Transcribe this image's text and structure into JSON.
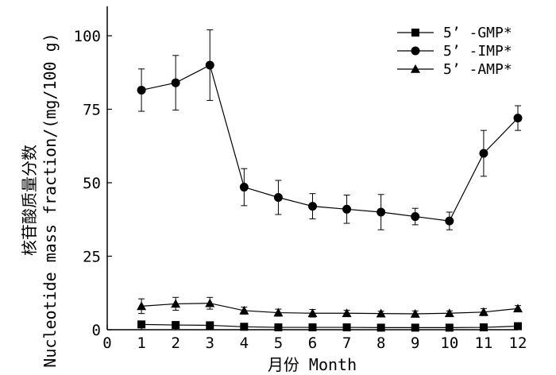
{
  "chart_data": {
    "type": "line",
    "title": "",
    "xlabel": "月份 Month",
    "ylabel_cn": "核苷酸质量分数",
    "ylabel_en": "Nucleotide mass fraction/(mg/100 g)",
    "xlim": [
      0,
      12
    ],
    "ylim": [
      0,
      110
    ],
    "xticks": [
      0,
      1,
      2,
      3,
      4,
      5,
      6,
      7,
      8,
      9,
      10,
      11,
      12
    ],
    "yticks": [
      0,
      25,
      50,
      75,
      100
    ],
    "grid": false,
    "legend_position": "top-right",
    "x": [
      1,
      2,
      3,
      4,
      5,
      6,
      7,
      8,
      9,
      10,
      11,
      12
    ],
    "series": [
      {
        "name": "5’ -GMP*",
        "marker": "square",
        "values": [
          1.8,
          1.6,
          1.5,
          1.0,
          0.8,
          0.8,
          0.8,
          0.7,
          0.7,
          0.7,
          0.8,
          1.2
        ],
        "errors": [
          0.5,
          0.4,
          0.4,
          0.3,
          0.2,
          0.2,
          0.2,
          0.2,
          0.2,
          0.2,
          0.2,
          0.3
        ]
      },
      {
        "name": "5’ -IMP*",
        "marker": "circle",
        "values": [
          81.5,
          84.0,
          90.0,
          48.5,
          45.0,
          42.0,
          41.0,
          40.0,
          38.5,
          37.0,
          60.0,
          72.0
        ],
        "errors": [
          7.2,
          9.3,
          12.0,
          6.3,
          5.8,
          4.3,
          4.8,
          6.0,
          2.8,
          3.0,
          7.8,
          4.2
        ]
      },
      {
        "name": "5’ -AMP*",
        "marker": "triangle",
        "values": [
          8.0,
          8.8,
          9.0,
          6.5,
          5.8,
          5.6,
          5.6,
          5.5,
          5.4,
          5.6,
          6.0,
          7.2
        ],
        "errors": [
          2.5,
          2.2,
          2.0,
          1.2,
          1.2,
          1.3,
          1.0,
          0.8,
          1.0,
          0.8,
          1.2,
          1.0
        ]
      }
    ]
  }
}
